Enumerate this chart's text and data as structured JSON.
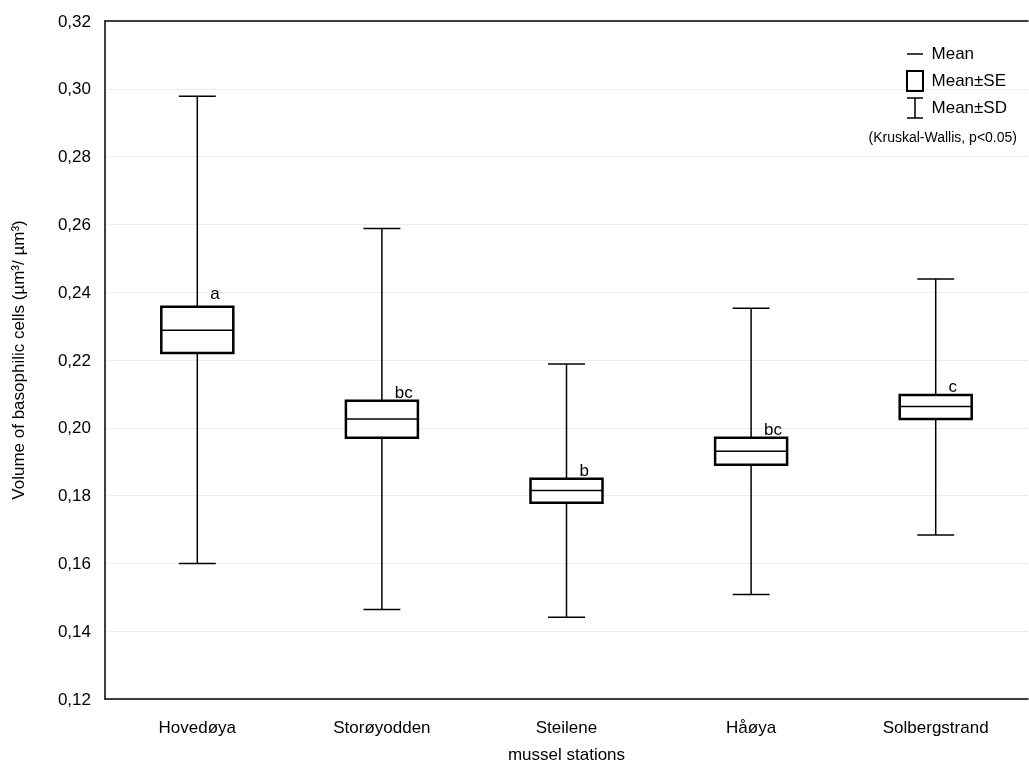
{
  "chart_data": {
    "type": "box",
    "categories": [
      "Hovedøya",
      "Storøyodden",
      "Steilene",
      "Håøya",
      "Solbergstrand"
    ],
    "boxes": [
      {
        "low": 0.16,
        "q1": 0.2221,
        "median": 0.2288,
        "q3": 0.2357,
        "high": 0.2978
      },
      {
        "low": 0.1464,
        "q1": 0.1971,
        "median": 0.2026,
        "q3": 0.208,
        "high": 0.2588
      },
      {
        "low": 0.1441,
        "q1": 0.1779,
        "median": 0.1815,
        "q3": 0.185,
        "high": 0.2188
      },
      {
        "low": 0.1508,
        "q1": 0.1891,
        "median": 0.1931,
        "q3": 0.1971,
        "high": 0.2353
      },
      {
        "low": 0.1684,
        "q1": 0.2026,
        "median": 0.2063,
        "q3": 0.2097,
        "high": 0.2439
      }
    ],
    "color": "#000000",
    "xlabel": "mussel stations",
    "ylabel": "Volume of basophilic cells (µm³/ µm³)",
    "ylim": [
      0.12,
      0.32
    ],
    "yticks": [
      {
        "value": 0.12,
        "label": "0,12"
      },
      {
        "value": 0.14,
        "label": "0,14"
      },
      {
        "value": 0.16,
        "label": "0,16"
      },
      {
        "value": 0.18,
        "label": "0,18"
      },
      {
        "value": 0.2,
        "label": "0,20"
      },
      {
        "value": 0.22,
        "label": "0,22"
      },
      {
        "value": 0.24,
        "label": "0,24"
      },
      {
        "value": 0.26,
        "label": "0,26"
      },
      {
        "value": 0.28,
        "label": "0,28"
      },
      {
        "value": 0.3,
        "label": "0,30"
      },
      {
        "value": 0.32,
        "label": "0,32"
      }
    ],
    "grid": "y",
    "annotations": [
      "Mean",
      "Mean±SE",
      "Mean±SD",
      "(Kruskal-Wallis, p<0.05)",
      {
        "text": "a",
        "x": "Hovedøya",
        "y": 0.2395
      },
      {
        "text": "bc",
        "x": "Storøyodden",
        "y": 0.2105
      },
      {
        "text": "b",
        "x": "Steilene",
        "y": 0.1875
      },
      {
        "text": "bc",
        "x": "Håøya",
        "y": 0.1995
      },
      {
        "text": "c",
        "x": "Solbergstrand",
        "y": 0.2123
      }
    ]
  }
}
